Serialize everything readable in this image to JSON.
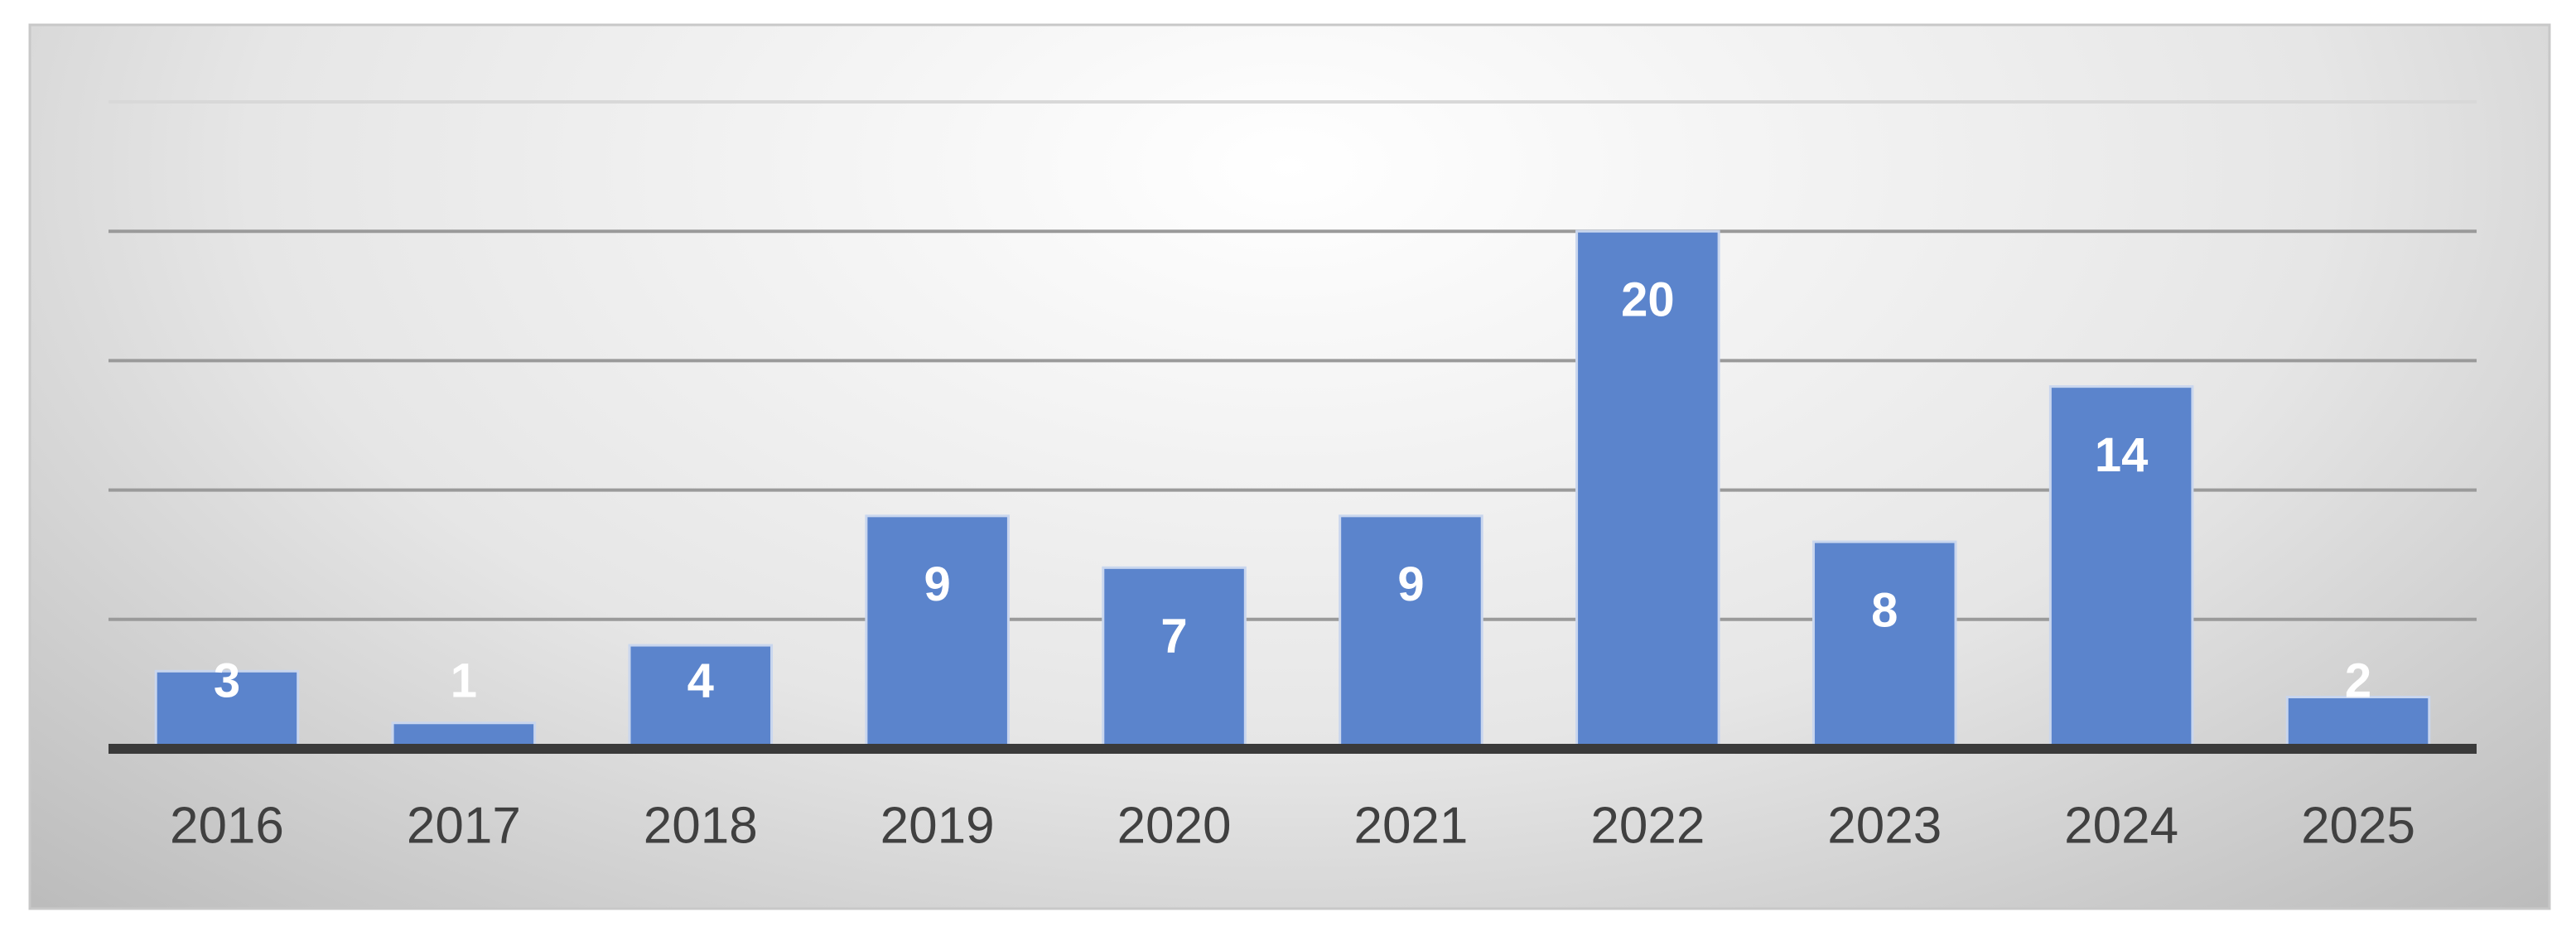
{
  "chart_data": {
    "type": "bar",
    "categories": [
      "2016",
      "2017",
      "2018",
      "2019",
      "2020",
      "2021",
      "2022",
      "2023",
      "2024",
      "2025"
    ],
    "values": [
      3,
      1,
      4,
      9,
      7,
      9,
      20,
      8,
      14,
      2
    ],
    "color": "#5b84cc",
    "ylim": [
      0,
      25
    ],
    "yticks": [
      0,
      5,
      10,
      15,
      20,
      25
    ],
    "grid": true
  }
}
